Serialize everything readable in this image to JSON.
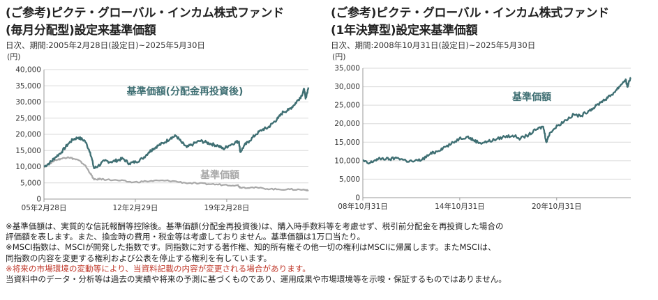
{
  "chart_data": [
    {
      "type": "line",
      "title": "(ご参考)ピクテ・グローバル・インカム株式ファンド",
      "subtitle": "(毎月分配型)設定来基準価額",
      "period": "日次、期間:2005年2月28日(設定日)~2025年5月30日",
      "unit": "(円)",
      "ylim": [
        0,
        40000
      ],
      "y_ticks": [
        "40,000",
        "35,000",
        "30,000",
        "25,000",
        "20,000",
        "15,000",
        "10,000",
        "5,000",
        "0"
      ],
      "y_tick_values": [
        40000,
        35000,
        30000,
        25000,
        20000,
        15000,
        10000,
        5000,
        0
      ],
      "x_ticks": [
        "05年2月28日",
        "12年2月29日",
        "19年2月28日"
      ],
      "x_tick_years": [
        2005.16,
        2012.16,
        2019.16
      ],
      "xlim": [
        2005.16,
        2025.42
      ],
      "grid": true,
      "series": [
        {
          "name": "基準価額(分配金再投資後)",
          "color": "#3f6f73",
          "x": [
            2005.16,
            2005.6,
            2006.0,
            2006.5,
            2007.0,
            2007.4,
            2007.8,
            2008.3,
            2008.7,
            2009.0,
            2009.3,
            2009.8,
            2010.3,
            2010.8,
            2011.2,
            2011.7,
            2012.2,
            2012.7,
            2013.2,
            2013.5,
            2013.9,
            2014.4,
            2014.9,
            2015.3,
            2015.7,
            2016.1,
            2016.6,
            2017.1,
            2017.6,
            2018.0,
            2018.5,
            2018.9,
            2019.3,
            2019.8,
            2020.1,
            2020.2,
            2020.5,
            2020.9,
            2021.4,
            2021.9,
            2022.3,
            2022.7,
            2023.1,
            2023.5,
            2023.9,
            2024.3,
            2024.6,
            2024.9,
            2025.1,
            2025.2,
            2025.42
          ],
          "values": [
            10000,
            11200,
            12800,
            14500,
            17000,
            18500,
            19000,
            18000,
            14500,
            9500,
            10200,
            11800,
            11500,
            12000,
            12500,
            11000,
            11500,
            12500,
            14500,
            15500,
            16500,
            17500,
            19000,
            19500,
            17500,
            16000,
            17000,
            18000,
            17500,
            17000,
            16500,
            15500,
            16500,
            17500,
            17800,
            14500,
            16500,
            18000,
            20000,
            21500,
            22000,
            23500,
            25000,
            27000,
            27500,
            29000,
            30500,
            32000,
            34000,
            31000,
            34500
          ]
        },
        {
          "name": "基準価額",
          "color": "#a8a8a8",
          "x": [
            2005.16,
            2005.6,
            2006.0,
            2006.5,
            2007.0,
            2007.4,
            2007.8,
            2008.3,
            2008.7,
            2009.0,
            2009.5,
            2010.0,
            2011.0,
            2012.0,
            2013.0,
            2014.0,
            2015.0,
            2016.0,
            2017.0,
            2018.0,
            2019.0,
            2020.0,
            2020.2,
            2021.0,
            2022.0,
            2023.0,
            2024.0,
            2025.0,
            2025.42
          ],
          "values": [
            10000,
            11000,
            12000,
            12500,
            13000,
            12500,
            12000,
            10500,
            8000,
            6000,
            6200,
            6000,
            5700,
            5200,
            5500,
            5700,
            5600,
            5000,
            4800,
            4600,
            4400,
            4300,
            3600,
            3600,
            3300,
            3000,
            3000,
            2900,
            2800
          ]
        }
      ],
      "annotations": [
        "基準価額(分配金再投資後)",
        "基準価額"
      ]
    },
    {
      "type": "line",
      "title": "(ご参考)ピクテ・グローバル・インカム株式ファンド",
      "subtitle": "(1年決算型)設定来基準価額",
      "period": "日次、期間:2008年10月31日(設定日)~2025年5月30日",
      "unit": "(円)",
      "ylim": [
        0,
        35000
      ],
      "y_ticks": [
        "35,000",
        "30,000",
        "25,000",
        "20,000",
        "15,000",
        "10,000",
        "5,000",
        "0"
      ],
      "y_tick_values": [
        35000,
        30000,
        25000,
        20000,
        15000,
        10000,
        5000,
        0
      ],
      "x_ticks": [
        "08年10月31日",
        "14年10月31日",
        "20年10月31日"
      ],
      "x_tick_years": [
        2008.83,
        2014.83,
        2020.83
      ],
      "xlim": [
        2008.83,
        2025.42
      ],
      "grid": true,
      "series": [
        {
          "name": "基準価額",
          "color": "#3f6f73",
          "x": [
            2008.83,
            2009.2,
            2009.6,
            2010.0,
            2010.5,
            2011.0,
            2011.5,
            2012.0,
            2012.5,
            2013.0,
            2013.4,
            2013.8,
            2014.3,
            2014.8,
            2015.3,
            2015.7,
            2016.1,
            2016.6,
            2017.1,
            2017.6,
            2018.1,
            2018.6,
            2019.1,
            2019.6,
            2020.0,
            2020.2,
            2020.4,
            2020.9,
            2021.4,
            2021.9,
            2022.3,
            2022.8,
            2023.2,
            2023.6,
            2024.0,
            2024.4,
            2024.8,
            2025.1,
            2025.2,
            2025.42
          ],
          "values": [
            10000,
            9200,
            10200,
            10600,
            10400,
            10800,
            10000,
            9800,
            10300,
            11800,
            12500,
            13500,
            14500,
            16000,
            16500,
            15500,
            14800,
            15200,
            15800,
            16500,
            16800,
            16000,
            17000,
            18500,
            19200,
            15000,
            17500,
            19500,
            21000,
            22500,
            22000,
            23500,
            24500,
            26000,
            27000,
            28500,
            30500,
            32000,
            30000,
            32500
          ]
        }
      ],
      "annotations": [
        "基準価額"
      ]
    }
  ],
  "notes": [
    "※基準価額は、実質的な信託報酬等控除後。基準価額(分配金再投資後)は、購入時手数料等を考慮せず、税引前分配金を再投資した場合の",
    "評価額を表します。また、換金時の費用・税金等は考慮しておりません。基準価額は1万口当たり。",
    "※MSCI指数は、MSCIが開発した指数です。同指数に対する著作権、知的所有権その他一切の権利はMSCIに帰属します。またMSCIは、",
    "同指数の内容を変更する権利および公表を停止する権利を有しています。",
    "※将来の市場環境の変動等により、当資料記載の内容が変更される場合があります。",
    "当資料中のデータ・分析等は過去の実績や将来の予測に基づくものであり、運用成果や市場環境等を示唆・保証するものではありません。"
  ],
  "colors": {
    "teal": "#3f6f73",
    "gray": "#a8a8a8",
    "grid": "#d9d9d9",
    "axis": "#999999",
    "note_red": "#c0392b"
  }
}
